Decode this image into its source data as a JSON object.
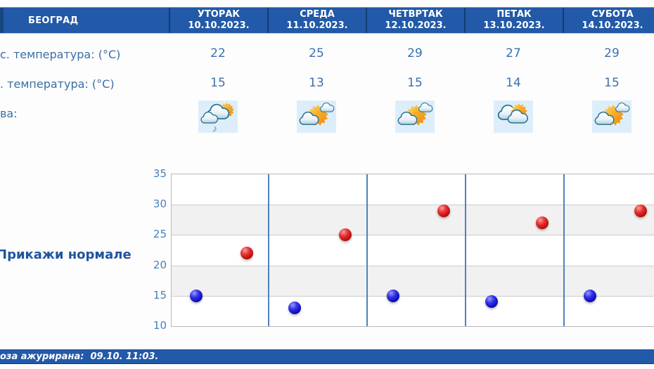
{
  "location": "БЕОГРАД",
  "days": [
    {
      "name": "УТОРАК",
      "date": "10.10.2023."
    },
    {
      "name": "СРЕДА",
      "date": "11.10.2023."
    },
    {
      "name": "ЧЕТВРТАК",
      "date": "12.10.2023."
    },
    {
      "name": "ПЕТАК",
      "date": "13.10.2023."
    },
    {
      "name": "СУБОТА",
      "date": "14.10.2023."
    }
  ],
  "table": {
    "max_temp_label": "с. температура: (°C)",
    "min_temp_label": ". температура: (°C)",
    "phenomena_label": "ва:",
    "max_temps": [
      "22",
      "25",
      "29",
      "27",
      "29"
    ],
    "min_temps": [
      "15",
      "13",
      "15",
      "14",
      "15"
    ],
    "icons": [
      "sun-behind-clouds-light-rain",
      "sun-with-clouds",
      "sun-with-clouds",
      "clouds-with-sun",
      "sun-with-clouds"
    ]
  },
  "normals_link_label": "Прикажи нормале",
  "footer": {
    "updated_text": "оза ажурирана:  09.10. 11:03."
  },
  "chart_data": {
    "type": "scatter",
    "x_categories": [
      "10.10.2023.",
      "11.10.2023.",
      "12.10.2023.",
      "13.10.2023.",
      "14.10.2023."
    ],
    "series": [
      {
        "key": "min",
        "name": "Минимална температура (°C)",
        "color": "#1616c8",
        "values": [
          15,
          13,
          15,
          14,
          15
        ]
      },
      {
        "key": "max",
        "name": "Максимална температура (°C)",
        "color": "#c81414",
        "values": [
          22,
          25,
          29,
          27,
          29
        ]
      }
    ],
    "ylim": [
      10,
      35
    ],
    "yticks": [
      35,
      30,
      25,
      20,
      15,
      10
    ],
    "grid": true,
    "band_pairs": [
      [
        30,
        25
      ],
      [
        20,
        15
      ]
    ],
    "legend": "none"
  },
  "colors": {
    "header_bg": "#2259a8",
    "header_separator": "#123c74",
    "header_text": "#ffffff",
    "label_text": "#3a6ea5",
    "value_text": "#3a70b0",
    "link_text": "#1d55a0",
    "tick_text": "#4a7ebb",
    "band": "#f1f1f1",
    "gridline": "#cccccc",
    "day_separator": "#4f81bd",
    "icon_cell_bg": "#ddeefa",
    "footer_bg": "#2259a8",
    "footer_text": "#ffffff",
    "min_point": "#1616c8",
    "max_point": "#c81414"
  }
}
